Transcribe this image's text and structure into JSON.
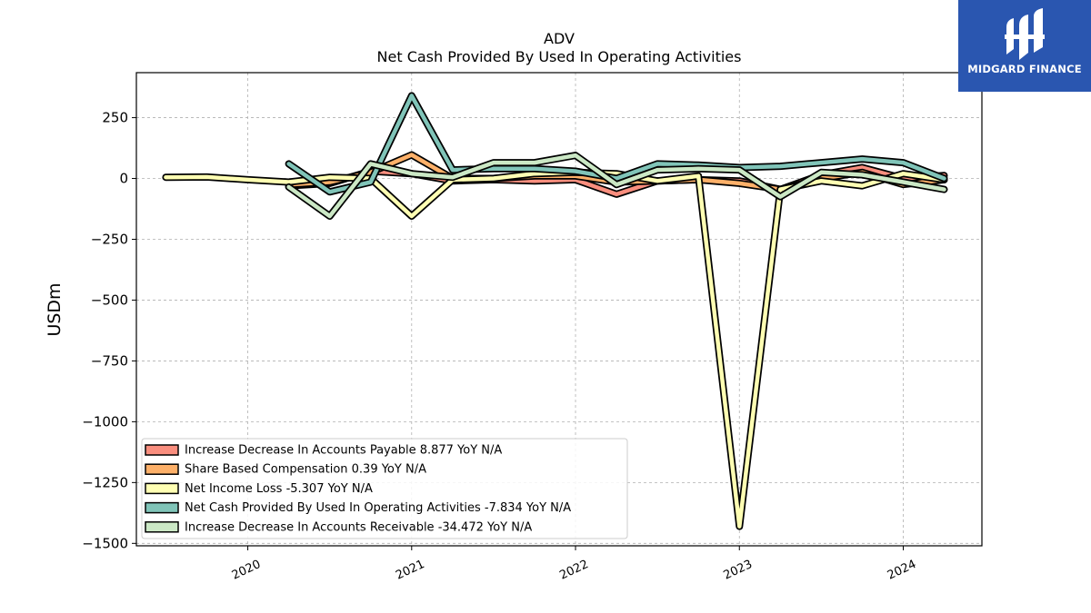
{
  "logo": {
    "text": "MIDGARD FINANCE",
    "icon": "midgard-logo-icon",
    "color": "#2a56b0"
  },
  "chart_data": {
    "type": "line",
    "title": "ADV",
    "subtitle": "Net Cash Provided By Used In Operating Activities",
    "xlabel": "",
    "ylabel": "USDm",
    "ylim": [
      -1510,
      435
    ],
    "xlim": [
      2019.32,
      2024.48
    ],
    "yticks": [
      250,
      0,
      -250,
      -500,
      -750,
      -1000,
      -1250,
      -1500
    ],
    "ytick_labels": [
      "250",
      "0",
      "−250",
      "−500",
      "−750",
      "−1000",
      "−1250",
      "−1500"
    ],
    "xticks": [
      2020,
      2021,
      2022,
      2023,
      2024
    ],
    "xtick_labels": [
      "2020",
      "2021",
      "2022",
      "2023",
      "2024"
    ],
    "grid": true,
    "legend_position": "lower-left",
    "series": [
      {
        "name": "Increase Decrease In Accounts Payable",
        "legend_label": "Increase Decrease In Accounts Payable  8.877 YoY N/A",
        "color": "#f98e7e",
        "x": [
          2020.25,
          2020.5,
          2020.75,
          2021.0,
          2021.25,
          2021.5,
          2021.75,
          2022.0,
          2022.25,
          2022.5,
          2022.75,
          2023.0,
          2023.25,
          2023.5,
          2023.75,
          2024.0,
          2024.25
        ],
        "y": [
          -30,
          -20,
          30,
          20,
          -10,
          -5,
          -10,
          -5,
          -65,
          -10,
          -5,
          -10,
          -45,
          15,
          45,
          0,
          12
        ]
      },
      {
        "name": "Share Based Compensation",
        "legend_label": "Share Based Compensation  0.39 YoY N/A",
        "color": "#fdb069",
        "x": [
          2020.25,
          2020.5,
          2020.75,
          2021.0,
          2021.25,
          2021.5,
          2021.75,
          2022.0,
          2022.25,
          2022.5,
          2022.75,
          2023.0,
          2023.25,
          2023.5,
          2023.75,
          2024.0,
          2024.25
        ],
        "y": [
          -25,
          -15,
          25,
          97,
          0,
          0,
          10,
          10,
          -15,
          -10,
          -5,
          -20,
          -45,
          0,
          25,
          -25,
          -5
        ]
      },
      {
        "name": "Net Income Loss",
        "legend_label": "Net Income Loss  -5.307 YoY N/A",
        "color": "#ffffb3",
        "x": [
          2019.5,
          2019.75,
          2020.0,
          2020.25,
          2020.5,
          2020.75,
          2021.0,
          2021.25,
          2021.5,
          2021.75,
          2022.0,
          2022.25,
          2022.5,
          2022.75,
          2023.0,
          2023.25,
          2023.5,
          2023.75,
          2024.0,
          2024.25
        ],
        "y": [
          5,
          6,
          -5,
          -15,
          5,
          0,
          -155,
          -5,
          0,
          20,
          25,
          20,
          -10,
          10,
          -1430,
          -45,
          -10,
          -30,
          20,
          -5
        ]
      },
      {
        "name": "Net Cash Provided By Used In Operating Activities",
        "legend_label": "Net Cash Provided By Used In Operating Activities  -7.834 YoY N/A",
        "color": "#80c4b8",
        "x": [
          2020.25,
          2020.5,
          2020.75,
          2021.0,
          2021.25,
          2021.5,
          2021.75,
          2022.0,
          2022.25,
          2022.5,
          2022.75,
          2023.0,
          2023.25,
          2023.5,
          2023.75,
          2024.0,
          2024.25
        ],
        "y": [
          60,
          -55,
          -15,
          340,
          35,
          40,
          40,
          30,
          0,
          60,
          55,
          45,
          50,
          65,
          80,
          65,
          0
        ]
      },
      {
        "name": "Increase Decrease In Accounts Receivable",
        "legend_label": "Increase Decrease In Accounts Receivable  -34.472 YoY N/A",
        "color": "#cbe8c5",
        "x": [
          2020.25,
          2020.5,
          2020.75,
          2021.0,
          2021.25,
          2021.5,
          2021.75,
          2022.0,
          2022.25,
          2022.5,
          2022.75,
          2023.0,
          2023.25,
          2023.5,
          2023.75,
          2024.0,
          2024.25
        ],
        "y": [
          -35,
          -155,
          60,
          20,
          5,
          65,
          65,
          95,
          -25,
          35,
          40,
          35,
          -75,
          25,
          15,
          -15,
          -45
        ]
      }
    ]
  }
}
